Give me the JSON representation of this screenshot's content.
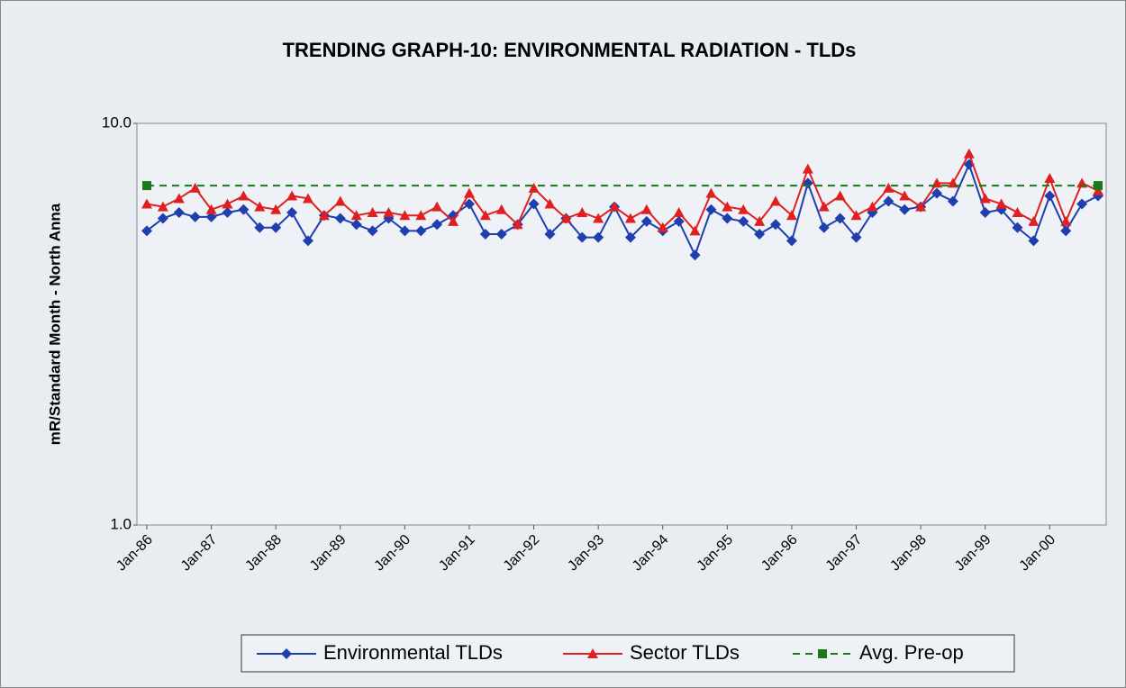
{
  "chart_data": {
    "type": "line",
    "title": "TRENDING GRAPH-10:  ENVIRONMENTAL RADIATION - TLDs",
    "y_label": "mR/Standard Month - North Anna",
    "categories": [
      "Jan-86",
      null,
      null,
      null,
      "Jan-87",
      null,
      null,
      null,
      "Jan-88",
      null,
      null,
      null,
      "Jan-89",
      null,
      null,
      null,
      "Jan-90",
      null,
      null,
      null,
      "Jan-91",
      null,
      null,
      null,
      "Jan-92",
      null,
      null,
      null,
      "Jan-93",
      null,
      null,
      null,
      "Jan-94",
      null,
      null,
      null,
      "Jan-95",
      null,
      null,
      null,
      "Jan-96",
      null,
      null,
      null,
      "Jan-97",
      null,
      null,
      null,
      "Jan-98",
      null,
      null,
      null,
      "Jan-99",
      null,
      null,
      null,
      "Jan-00",
      null,
      null,
      null
    ],
    "series": [
      {
        "name": "Environmental TLDs",
        "color": "#1f3fae",
        "marker": "diamond",
        "values": [
          5.4,
          5.8,
          6.0,
          5.85,
          5.85,
          6.0,
          6.1,
          5.5,
          5.5,
          6.0,
          5.1,
          5.9,
          5.8,
          5.6,
          5.4,
          5.8,
          5.4,
          5.4,
          5.6,
          5.9,
          6.3,
          5.3,
          5.3,
          5.6,
          6.3,
          5.3,
          5.8,
          5.2,
          5.2,
          6.2,
          5.2,
          5.7,
          5.4,
          5.7,
          4.7,
          6.1,
          5.8,
          5.7,
          5.3,
          5.6,
          5.1,
          7.1,
          5.5,
          5.8,
          5.2,
          6.0,
          6.4,
          6.1,
          6.2,
          6.7,
          6.4,
          7.9,
          6.0,
          6.1,
          5.5,
          5.1,
          6.6,
          5.4,
          6.3,
          6.6
        ]
      },
      {
        "name": "Sector TLDs",
        "color": "#e02020",
        "marker": "triangle",
        "values": [
          6.3,
          6.2,
          6.5,
          6.9,
          6.1,
          6.3,
          6.6,
          6.2,
          6.1,
          6.6,
          6.5,
          5.9,
          6.4,
          5.9,
          6.0,
          6.0,
          5.9,
          5.9,
          6.2,
          5.7,
          6.7,
          5.9,
          6.1,
          5.6,
          6.9,
          6.3,
          5.8,
          6.0,
          5.8,
          6.2,
          5.8,
          6.1,
          5.5,
          6.0,
          5.4,
          6.7,
          6.2,
          6.1,
          5.7,
          6.4,
          5.9,
          7.7,
          6.2,
          6.6,
          5.9,
          6.2,
          6.9,
          6.6,
          6.2,
          7.1,
          7.1,
          8.4,
          6.5,
          6.3,
          6.0,
          5.7,
          7.3,
          5.7,
          7.1,
          6.8
        ]
      },
      {
        "name": "Avg. Pre-op",
        "color": "#1a7a1a",
        "marker": "square",
        "dashed": true,
        "values": [
          7.0,
          7.0,
          7.0,
          7.0,
          7.0,
          7.0,
          7.0,
          7.0,
          7.0,
          7.0,
          7.0,
          7.0,
          7.0,
          7.0,
          7.0,
          7.0,
          7.0,
          7.0,
          7.0,
          7.0,
          7.0,
          7.0,
          7.0,
          7.0,
          7.0,
          7.0,
          7.0,
          7.0,
          7.0,
          7.0,
          7.0,
          7.0,
          7.0,
          7.0,
          7.0,
          7.0,
          7.0,
          7.0,
          7.0,
          7.0,
          7.0,
          7.0,
          7.0,
          7.0,
          7.0,
          7.0,
          7.0,
          7.0,
          7.0,
          7.0,
          7.0,
          7.0,
          7.0,
          7.0,
          7.0,
          7.0,
          7.0,
          7.0,
          7.0,
          7.0
        ]
      }
    ],
    "ylim": [
      1,
      10
    ],
    "yticks": [
      {
        "value": 1,
        "label": "1.0"
      },
      {
        "value": 10,
        "label": "10.0"
      }
    ],
    "log_y": true,
    "legend": "bottom"
  }
}
